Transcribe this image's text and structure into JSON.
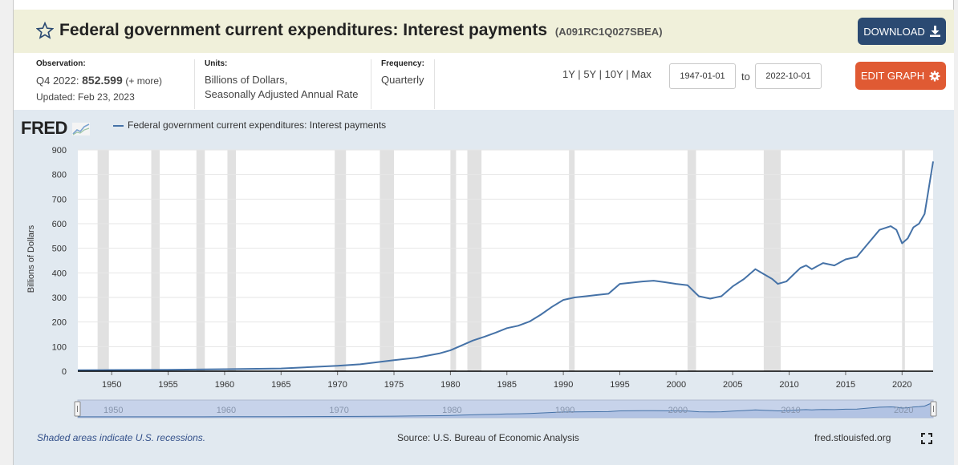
{
  "header": {
    "title": "Federal government current expenditures: Interest payments",
    "series_id": "(A091RC1Q027SBEA)",
    "download_label": "DOWNLOAD"
  },
  "meta": {
    "observation_label": "Observation:",
    "observation_period": "Q4 2022:",
    "observation_value": "852.599",
    "observation_more": "(+ more)",
    "updated": "Updated: Feb 23, 2023",
    "units_label": "Units:",
    "units_line1": "Billions of Dollars,",
    "units_line2": "Seasonally Adjusted Annual Rate",
    "frequency_label": "Frequency:",
    "frequency_value": "Quarterly"
  },
  "controls": {
    "range_1y": "1Y",
    "range_5y": "5Y",
    "range_10y": "10Y",
    "range_max": "Max",
    "sep": "|",
    "start_date": "1947-01-01",
    "to_label": "to",
    "end_date": "2022-10-01",
    "edit_label": "EDIT GRAPH"
  },
  "branding": {
    "logo": "FRED"
  },
  "footer": {
    "recession_note": "Shaded areas indicate U.S. recessions.",
    "source": "Source: U.S. Bureau of Economic Analysis",
    "url": "fred.stlouisfed.org"
  },
  "colors": {
    "line": "#4572a7",
    "recession": "#e1e1e1",
    "title_bar": "#f0f0da",
    "download": "#2b4a72",
    "edit": "#e05a33"
  },
  "chart_data": {
    "type": "line",
    "title": "",
    "series": [
      {
        "name": "Federal government current expenditures: Interest payments",
        "x": [
          1947,
          1950,
          1955,
          1960,
          1965,
          1970,
          1972,
          1975,
          1977,
          1979,
          1980,
          1981,
          1982,
          1983,
          1984,
          1985,
          1986,
          1987,
          1988,
          1989,
          1990,
          1991,
          1992,
          1993,
          1994,
          1995,
          1996,
          1997,
          1998,
          1999,
          2000,
          2001,
          2002,
          2003,
          2004,
          2005,
          2006,
          2007,
          2007.75,
          2008.5,
          2009,
          2009.75,
          2010.5,
          2011,
          2011.5,
          2012,
          2013,
          2014,
          2015,
          2016,
          2017,
          2018,
          2019,
          2019.5,
          2020,
          2020.5,
          2021,
          2021.5,
          2022,
          2022.75
        ],
        "values": [
          4,
          5,
          6,
          8,
          11,
          22,
          28,
          45,
          55,
          72,
          85,
          105,
          125,
          140,
          157,
          175,
          185,
          202,
          230,
          262,
          290,
          300,
          305,
          310,
          315,
          355,
          360,
          365,
          368,
          362,
          355,
          350,
          305,
          295,
          305,
          345,
          375,
          415,
          395,
          375,
          355,
          365,
          398,
          420,
          430,
          415,
          440,
          430,
          455,
          465,
          520,
          575,
          590,
          575,
          520,
          540,
          585,
          600,
          640,
          853
        ]
      }
    ],
    "xlabel": "",
    "ylabel": "Billions of Dollars",
    "xlim": [
      1947,
      2022.75
    ],
    "ylim": [
      0,
      900
    ],
    "yticks": [
      0,
      100,
      200,
      300,
      400,
      500,
      600,
      700,
      800,
      900
    ],
    "xticks": [
      1950,
      1955,
      1960,
      1965,
      1970,
      1975,
      1980,
      1985,
      1990,
      1995,
      2000,
      2005,
      2010,
      2015,
      2020
    ],
    "recessions": [
      [
        1948.75,
        1949.75
      ],
      [
        1953.5,
        1954.25
      ],
      [
        1957.5,
        1958.25
      ],
      [
        1960.25,
        1961.0
      ],
      [
        1969.75,
        1970.75
      ],
      [
        1973.75,
        1975.0
      ],
      [
        1980.0,
        1980.5
      ],
      [
        1981.5,
        1982.75
      ],
      [
        1990.5,
        1991.0
      ],
      [
        2001.0,
        2001.75
      ],
      [
        2007.75,
        2009.25
      ],
      [
        2020.0,
        2020.25
      ]
    ],
    "grid": true
  }
}
